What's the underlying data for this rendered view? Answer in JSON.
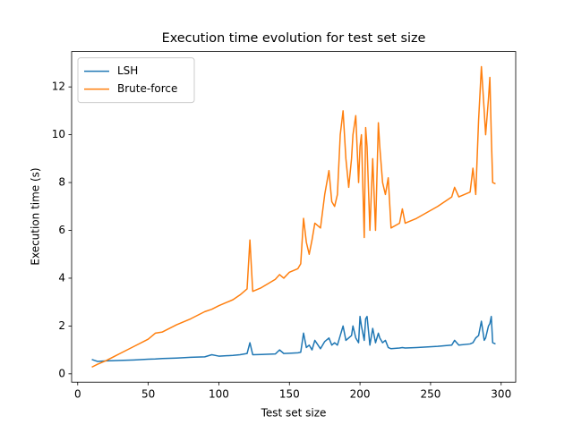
{
  "chart_data": {
    "type": "line",
    "title": "Execution time evolution for test set size",
    "x_label": "Test set size",
    "y_label": "Execution time (s)",
    "x": [
      10,
      14,
      20,
      30,
      40,
      50,
      55,
      60,
      70,
      80,
      90,
      95,
      100,
      110,
      115,
      120,
      122,
      124,
      130,
      140,
      143,
      146,
      150,
      156,
      158,
      160,
      162,
      164,
      166,
      168,
      172,
      175,
      178,
      180,
      182,
      184,
      186,
      188,
      190,
      192,
      194,
      195,
      197,
      199,
      200,
      201,
      203,
      204,
      205,
      207,
      209,
      211,
      213,
      214,
      216,
      218,
      220,
      222,
      228,
      230,
      232,
      240,
      255,
      265,
      267,
      270,
      278,
      280,
      282,
      284,
      286,
      288,
      289,
      291,
      292,
      293,
      294,
      296
    ],
    "series": [
      {
        "name": "LSH",
        "color": "#1f77b4",
        "values": [
          0.6,
          0.52,
          0.54,
          0.56,
          0.58,
          0.61,
          0.62,
          0.64,
          0.66,
          0.69,
          0.71,
          0.8,
          0.74,
          0.77,
          0.8,
          0.85,
          1.3,
          0.8,
          0.81,
          0.83,
          1.0,
          0.85,
          0.86,
          0.88,
          0.9,
          1.7,
          1.1,
          1.2,
          1.0,
          1.4,
          1.05,
          1.35,
          1.5,
          1.2,
          1.3,
          1.2,
          1.6,
          2.0,
          1.4,
          1.5,
          1.6,
          2.0,
          1.5,
          1.3,
          2.4,
          2.0,
          1.4,
          2.3,
          2.4,
          1.2,
          1.9,
          1.3,
          1.7,
          1.5,
          1.3,
          1.4,
          1.1,
          1.05,
          1.08,
          1.1,
          1.08,
          1.1,
          1.15,
          1.2,
          1.4,
          1.2,
          1.25,
          1.3,
          1.5,
          1.6,
          2.2,
          1.4,
          1.5,
          2.0,
          2.1,
          2.4,
          1.3,
          1.25
        ]
      },
      {
        "name": "Brute-force",
        "color": "#ff7f0e",
        "values": [
          0.28,
          0.4,
          0.55,
          0.85,
          1.15,
          1.45,
          1.7,
          1.75,
          2.05,
          2.3,
          2.6,
          2.7,
          2.85,
          3.1,
          3.3,
          3.55,
          5.6,
          3.45,
          3.6,
          3.95,
          4.15,
          4.0,
          4.25,
          4.4,
          4.6,
          6.5,
          5.5,
          5.0,
          5.6,
          6.3,
          6.1,
          7.5,
          8.5,
          7.2,
          7.0,
          7.5,
          10.0,
          11.0,
          9.0,
          7.8,
          9.0,
          10.0,
          10.8,
          8.0,
          9.5,
          10.0,
          5.7,
          10.3,
          9.5,
          6.0,
          9.0,
          6.0,
          10.5,
          9.5,
          8.0,
          7.5,
          8.2,
          6.1,
          6.3,
          6.9,
          6.3,
          6.5,
          7.0,
          7.4,
          7.8,
          7.4,
          7.6,
          8.6,
          7.5,
          10.6,
          12.85,
          11.0,
          10.0,
          11.5,
          12.4,
          10.0,
          8.0,
          7.95
        ]
      }
    ],
    "xlim": [
      -4.3,
      310.3
    ],
    "ylim": [
      -0.35,
      13.48
    ],
    "xticks": [
      0,
      50,
      100,
      150,
      200,
      250,
      300
    ],
    "yticks": [
      0,
      2,
      4,
      6,
      8,
      10,
      12
    ],
    "legend": "upper left"
  }
}
